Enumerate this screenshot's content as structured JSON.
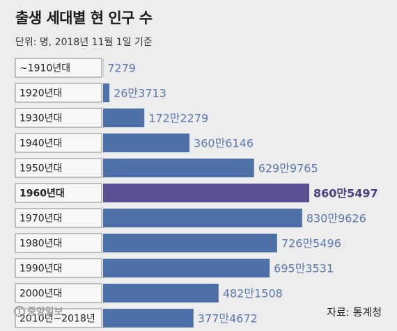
{
  "title": "출생 세대별 현 인구 수",
  "subtitle": "단위: 명, 2018년 11월 1일 기준",
  "source": "자료: 통계청",
  "logo": "중앙일보",
  "colors": {
    "bar": "#4e72a7",
    "highlight_bar": "#5b4f94",
    "value_text": "#5a7ab0",
    "highlight_text": "#4a4280",
    "label_box_border": "#8a8a8a"
  },
  "chart_data": {
    "type": "bar",
    "orientation": "horizontal",
    "title": "출생 세대별 현 인구 수",
    "unit": "명",
    "highlight": "1960년대",
    "categories": [
      "~1910년대",
      "1920년대",
      "1930년대",
      "1940년대",
      "1950년대",
      "1960년대",
      "1970년대",
      "1980년대",
      "1990년대",
      "2000년대",
      "2010년~2018년"
    ],
    "values": [
      7279,
      263713,
      1722279,
      3606146,
      6299765,
      8605497,
      8309626,
      7265496,
      6953531,
      4821508,
      3774672
    ],
    "value_labels": [
      "7279",
      "26만3713",
      "172만2279",
      "360만6146",
      "629만9765",
      "860만5497",
      "830만9626",
      "726만5496",
      "695만3531",
      "482만1508",
      "377만4672"
    ]
  }
}
